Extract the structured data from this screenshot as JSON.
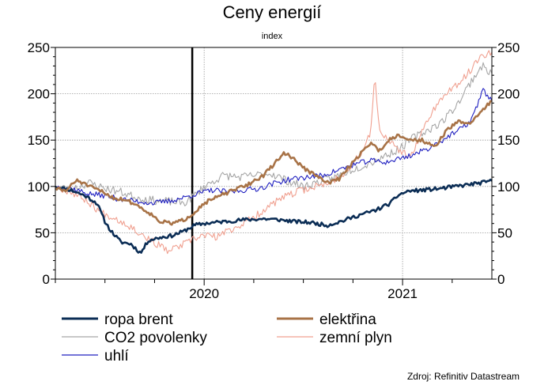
{
  "chart_data": {
    "type": "line",
    "title": "Ceny energií",
    "subtitle": "index",
    "source": "Zdroj: Refinitiv Datastream",
    "ylim": [
      0,
      250
    ],
    "yticks": [
      0,
      50,
      100,
      150,
      200,
      250
    ],
    "xlim": [
      2019.25,
      2021.45
    ],
    "xticks": [
      {
        "label": "2020",
        "pos": 2020.0
      },
      {
        "label": "2021",
        "pos": 2021.0
      }
    ],
    "vline": 2019.94,
    "grid": true,
    "legend": "bottom",
    "series": [
      {
        "name": "ropa brent",
        "color": "#0b2d55",
        "width": 2.6,
        "seed": 11,
        "noise": 2.0,
        "points": [
          [
            2019.25,
            100
          ],
          [
            2019.33,
            96
          ],
          [
            2019.4,
            90
          ],
          [
            2019.46,
            82
          ],
          [
            2019.5,
            62
          ],
          [
            2019.53,
            52
          ],
          [
            2019.58,
            40
          ],
          [
            2019.63,
            38
          ],
          [
            2019.68,
            28
          ],
          [
            2019.72,
            42
          ],
          [
            2019.78,
            45
          ],
          [
            2019.84,
            47
          ],
          [
            2019.9,
            52
          ],
          [
            2019.95,
            58
          ],
          [
            2020.0,
            60
          ],
          [
            2020.1,
            62
          ],
          [
            2020.2,
            64
          ],
          [
            2020.3,
            65
          ],
          [
            2020.38,
            64
          ],
          [
            2020.46,
            62
          ],
          [
            2020.54,
            61
          ],
          [
            2020.62,
            58
          ],
          [
            2020.7,
            63
          ],
          [
            2020.78,
            69
          ],
          [
            2020.86,
            74
          ],
          [
            2020.94,
            82
          ],
          [
            2020.98,
            91
          ],
          [
            2021.03,
            95
          ],
          [
            2021.1,
            96
          ],
          [
            2021.2,
            98
          ],
          [
            2021.3,
            101
          ],
          [
            2021.4,
            104
          ],
          [
            2021.45,
            106
          ]
        ]
      },
      {
        "name": "CO2 povolenky",
        "color": "#a6a6a6",
        "width": 1.1,
        "seed": 23,
        "noise": 4.5,
        "points": [
          [
            2019.25,
            100
          ],
          [
            2019.33,
            97
          ],
          [
            2019.42,
            104
          ],
          [
            2019.5,
            98
          ],
          [
            2019.58,
            94
          ],
          [
            2019.66,
            88
          ],
          [
            2019.74,
            85
          ],
          [
            2019.82,
            84
          ],
          [
            2019.9,
            82
          ],
          [
            2019.95,
            90
          ],
          [
            2020.0,
            100
          ],
          [
            2020.1,
            112
          ],
          [
            2020.18,
            110
          ],
          [
            2020.26,
            112
          ],
          [
            2020.34,
            114
          ],
          [
            2020.42,
            106
          ],
          [
            2020.5,
            100
          ],
          [
            2020.58,
            105
          ],
          [
            2020.66,
            110
          ],
          [
            2020.74,
            118
          ],
          [
            2020.82,
            124
          ],
          [
            2020.9,
            132
          ],
          [
            2020.98,
            140
          ],
          [
            2021.05,
            152
          ],
          [
            2021.12,
            160
          ],
          [
            2021.2,
            170
          ],
          [
            2021.28,
            190
          ],
          [
            2021.35,
            215
          ],
          [
            2021.4,
            230
          ],
          [
            2021.45,
            222
          ]
        ]
      },
      {
        "name": "uhlí",
        "color": "#2020c0",
        "width": 1.1,
        "seed": 37,
        "noise": 3.0,
        "points": [
          [
            2019.25,
            100
          ],
          [
            2019.33,
            98
          ],
          [
            2019.42,
            92
          ],
          [
            2019.5,
            90
          ],
          [
            2019.58,
            86
          ],
          [
            2019.66,
            84
          ],
          [
            2019.74,
            82
          ],
          [
            2019.82,
            84
          ],
          [
            2019.9,
            88
          ],
          [
            2019.96,
            92
          ],
          [
            2020.04,
            96
          ],
          [
            2020.12,
            94
          ],
          [
            2020.2,
            96
          ],
          [
            2020.28,
            98
          ],
          [
            2020.36,
            104
          ],
          [
            2020.44,
            108
          ],
          [
            2020.52,
            110
          ],
          [
            2020.6,
            112
          ],
          [
            2020.68,
            118
          ],
          [
            2020.76,
            124
          ],
          [
            2020.84,
            128
          ],
          [
            2020.92,
            126
          ],
          [
            2020.98,
            130
          ],
          [
            2021.05,
            134
          ],
          [
            2021.12,
            140
          ],
          [
            2021.2,
            150
          ],
          [
            2021.28,
            160
          ],
          [
            2021.34,
            170
          ],
          [
            2021.38,
            188
          ],
          [
            2021.4,
            205
          ],
          [
            2021.43,
            198
          ],
          [
            2021.45,
            192
          ]
        ]
      },
      {
        "name": "elektřina",
        "color": "#a87347",
        "width": 2.6,
        "seed": 51,
        "noise": 2.0,
        "points": [
          [
            2019.25,
            98
          ],
          [
            2019.3,
            95
          ],
          [
            2019.36,
            107
          ],
          [
            2019.42,
            100
          ],
          [
            2019.48,
            95
          ],
          [
            2019.55,
            87
          ],
          [
            2019.6,
            86
          ],
          [
            2019.66,
            80
          ],
          [
            2019.72,
            72
          ],
          [
            2019.78,
            62
          ],
          [
            2019.84,
            60
          ],
          [
            2019.9,
            64
          ],
          [
            2019.95,
            72
          ],
          [
            2020.0,
            82
          ],
          [
            2020.08,
            90
          ],
          [
            2020.15,
            96
          ],
          [
            2020.22,
            102
          ],
          [
            2020.3,
            112
          ],
          [
            2020.36,
            126
          ],
          [
            2020.4,
            136
          ],
          [
            2020.44,
            132
          ],
          [
            2020.5,
            120
          ],
          [
            2020.56,
            112
          ],
          [
            2020.62,
            104
          ],
          [
            2020.68,
            108
          ],
          [
            2020.74,
            124
          ],
          [
            2020.8,
            138
          ],
          [
            2020.84,
            148
          ],
          [
            2020.88,
            138
          ],
          [
            2020.93,
            150
          ],
          [
            2020.98,
            156
          ],
          [
            2021.04,
            150
          ],
          [
            2021.1,
            150
          ],
          [
            2021.16,
            142
          ],
          [
            2021.22,
            160
          ],
          [
            2021.28,
            170
          ],
          [
            2021.34,
            168
          ],
          [
            2021.4,
            182
          ],
          [
            2021.45,
            192
          ]
        ]
      },
      {
        "name": "zemní plyn",
        "color": "#f0a090",
        "width": 1.1,
        "seed": 67,
        "noise": 4.0,
        "points": [
          [
            2019.25,
            100
          ],
          [
            2019.33,
            94
          ],
          [
            2019.4,
            86
          ],
          [
            2019.48,
            72
          ],
          [
            2019.55,
            66
          ],
          [
            2019.62,
            58
          ],
          [
            2019.7,
            46
          ],
          [
            2019.76,
            38
          ],
          [
            2019.82,
            30
          ],
          [
            2019.88,
            36
          ],
          [
            2019.94,
            42
          ],
          [
            2020.0,
            48
          ],
          [
            2020.06,
            45
          ],
          [
            2020.12,
            52
          ],
          [
            2020.18,
            58
          ],
          [
            2020.26,
            68
          ],
          [
            2020.32,
            78
          ],
          [
            2020.4,
            88
          ],
          [
            2020.48,
            95
          ],
          [
            2020.56,
            100
          ],
          [
            2020.62,
            103
          ],
          [
            2020.68,
            110
          ],
          [
            2020.74,
            122
          ],
          [
            2020.8,
            138
          ],
          [
            2020.84,
            160
          ],
          [
            2020.86,
            220
          ],
          [
            2020.88,
            165
          ],
          [
            2020.92,
            150
          ],
          [
            2020.98,
            140
          ],
          [
            2021.04,
            130
          ],
          [
            2021.1,
            160
          ],
          [
            2021.16,
            185
          ],
          [
            2021.22,
            200
          ],
          [
            2021.28,
            210
          ],
          [
            2021.34,
            225
          ],
          [
            2021.4,
            242
          ],
          [
            2021.45,
            245
          ]
        ]
      }
    ]
  }
}
